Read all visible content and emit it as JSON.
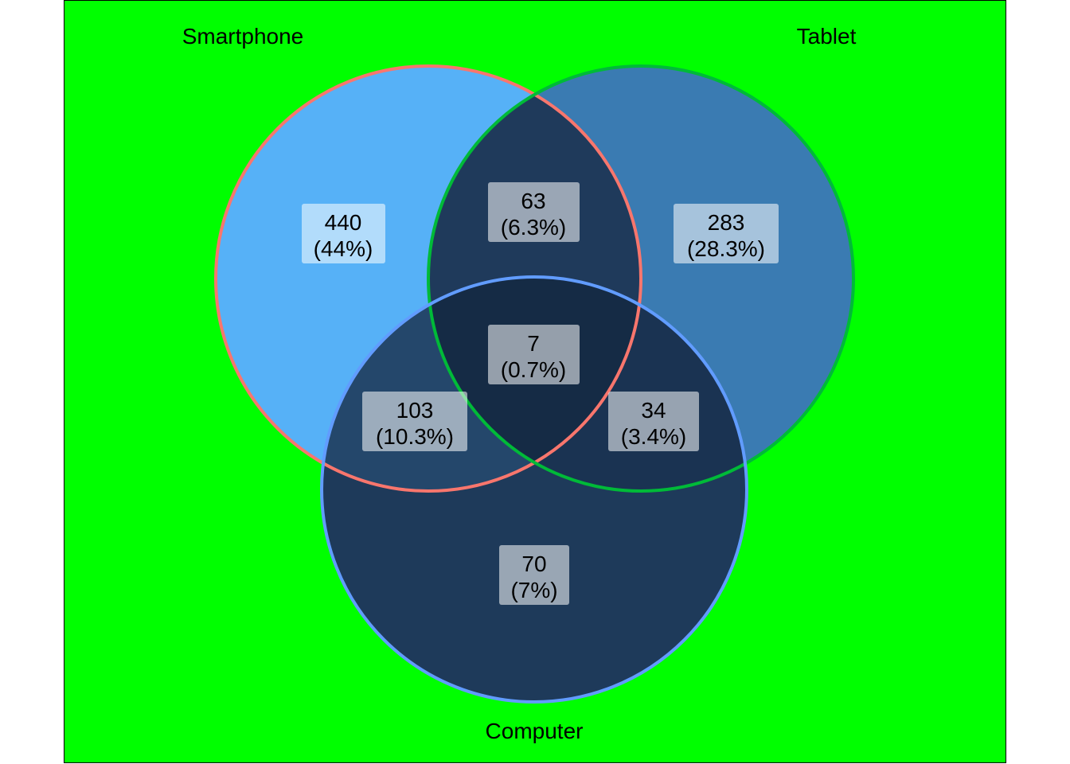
{
  "chart_data": {
    "type": "venn",
    "colors": {
      "background": "#00ff00",
      "frame": "#000000",
      "label_box": "#ffffff",
      "region_smartphone": "#56b1f7",
      "region_tablet": "#3a7bb2",
      "region_smartphone_tablet": "#1f3a5b",
      "region_all": "#152b45",
      "region_computer": "#1e3a5a"
    },
    "sets": [
      {
        "name": "Smartphone",
        "stroke": "#f8766d"
      },
      {
        "name": "Tablet",
        "stroke": "#00ba38"
      },
      {
        "name": "Computer",
        "stroke": "#619cff"
      }
    ],
    "regions": [
      {
        "id": "smartphone_only",
        "sets": [
          "Smartphone"
        ],
        "count": "440",
        "percent": "(44%)",
        "fill": "#56b1f7"
      },
      {
        "id": "tablet_only",
        "sets": [
          "Tablet"
        ],
        "count": "283",
        "percent": "(28.3%)",
        "fill": "#3a7bb2"
      },
      {
        "id": "smartphone_tablet",
        "sets": [
          "Smartphone",
          "Tablet"
        ],
        "count": "63",
        "percent": "(6.3%)",
        "fill": "#1f3a5b"
      },
      {
        "id": "all_three",
        "sets": [
          "Smartphone",
          "Tablet",
          "Computer"
        ],
        "count": "7",
        "percent": "(0.7%)",
        "fill": "#152b45"
      },
      {
        "id": "smartphone_computer",
        "sets": [
          "Smartphone",
          "Computer"
        ],
        "count": "103",
        "percent": "(10.3%)",
        "fill": "#24476b"
      },
      {
        "id": "tablet_computer",
        "sets": [
          "Tablet",
          "Computer"
        ],
        "count": "34",
        "percent": "(3.4%)",
        "fill": "#1a3352"
      },
      {
        "id": "computer_only",
        "sets": [
          "Computer"
        ],
        "count": "70",
        "percent": "(7%)",
        "fill": "#1e3a5a"
      }
    ]
  }
}
